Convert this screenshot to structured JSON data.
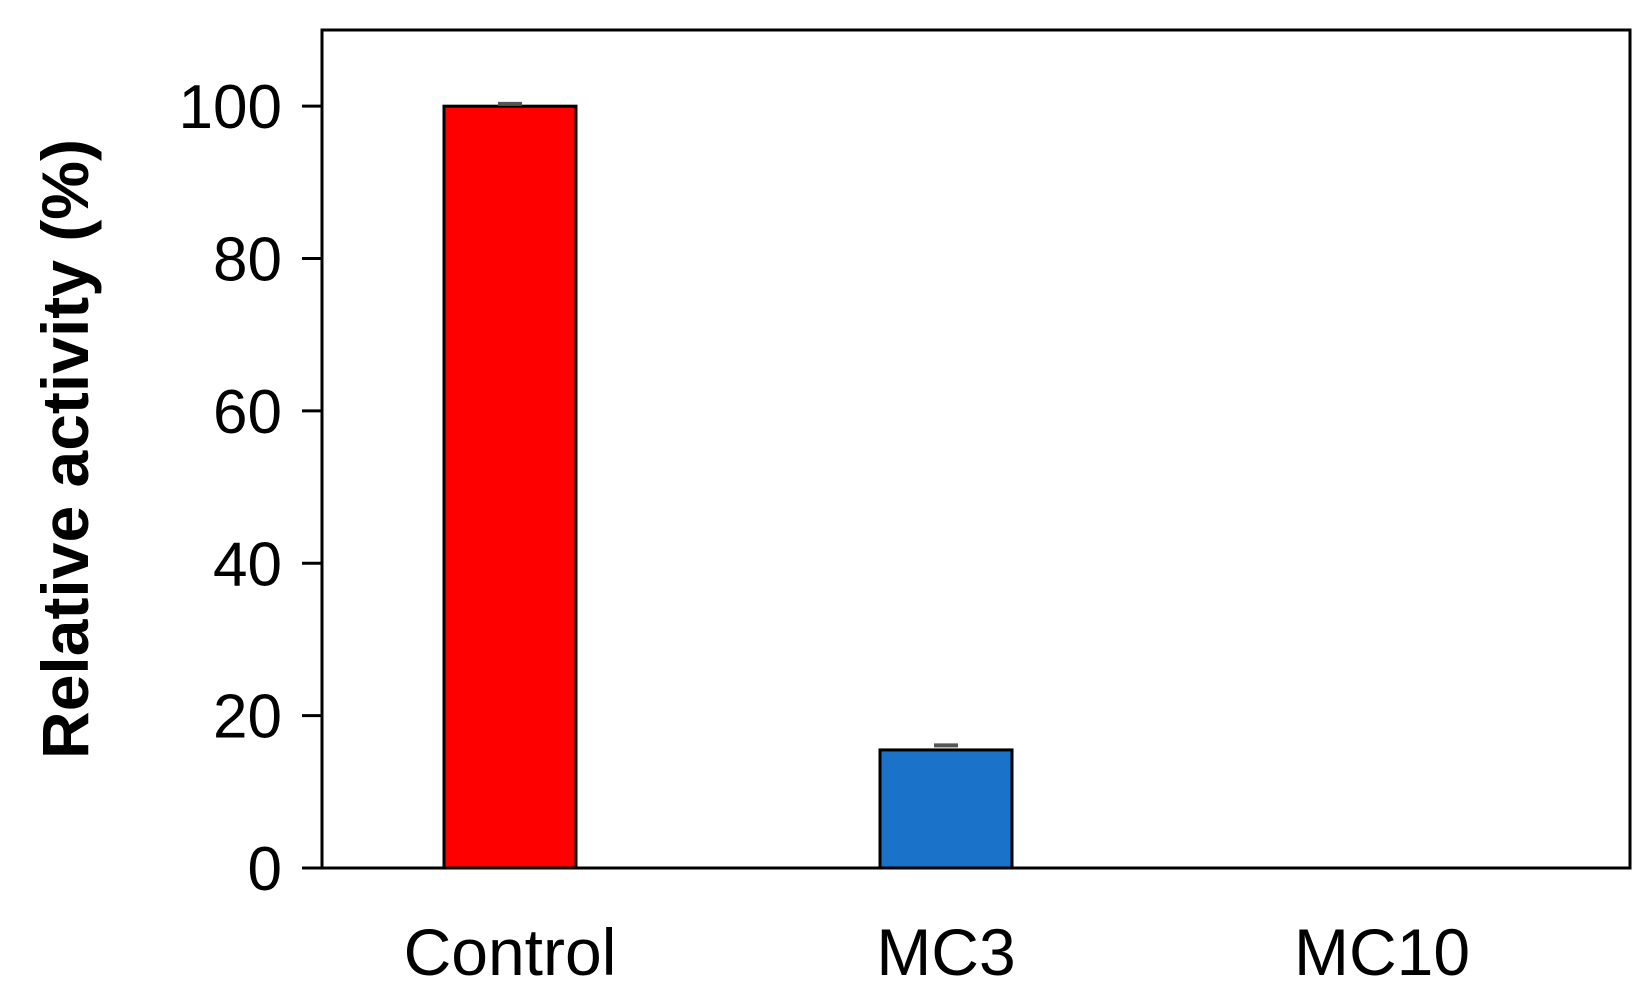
{
  "chart_data": {
    "type": "bar",
    "title": "",
    "xlabel": "",
    "ylabel": "Relative activity (%)",
    "categories": [
      "Control",
      "MC3",
      "MC10"
    ],
    "values": [
      100,
      15.5,
      0
    ],
    "errors": [
      0.3,
      0.6,
      0
    ],
    "bar_colors": [
      "#ff0000",
      "#1a73c8",
      "#1a73c8"
    ],
    "ylim": [
      0,
      110
    ],
    "yticks": [
      0,
      20,
      40,
      60,
      80,
      100
    ],
    "ytick_labels": [
      "0",
      "20",
      "40",
      "60",
      "80",
      "100"
    ],
    "grid": false,
    "legend": "none"
  }
}
